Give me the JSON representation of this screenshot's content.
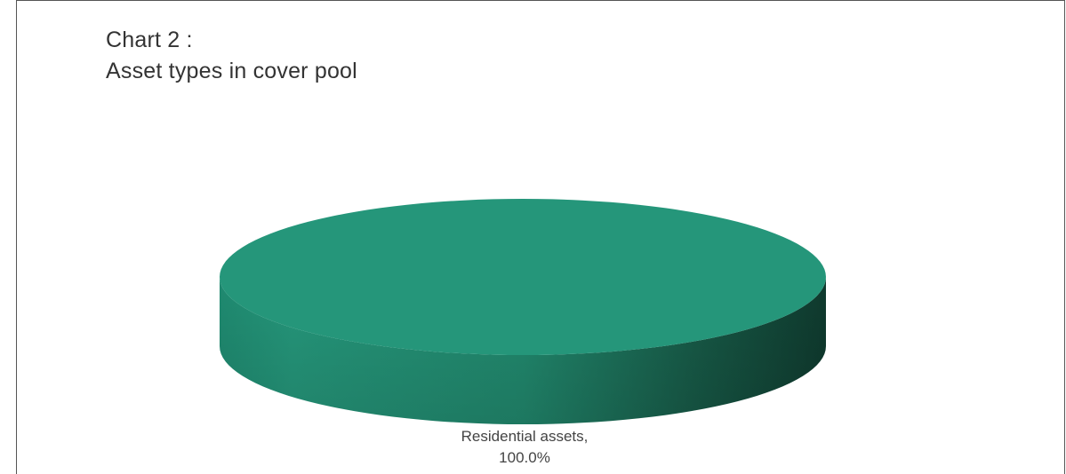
{
  "chart_data": {
    "type": "pie",
    "title_line1": "Chart 2 :",
    "title_line2": "Asset types in cover pool",
    "slices": [
      {
        "label": "Residential assets,",
        "value_label": "100.0%",
        "value": 100.0,
        "color": "#25967A"
      }
    ],
    "style": "3d"
  }
}
